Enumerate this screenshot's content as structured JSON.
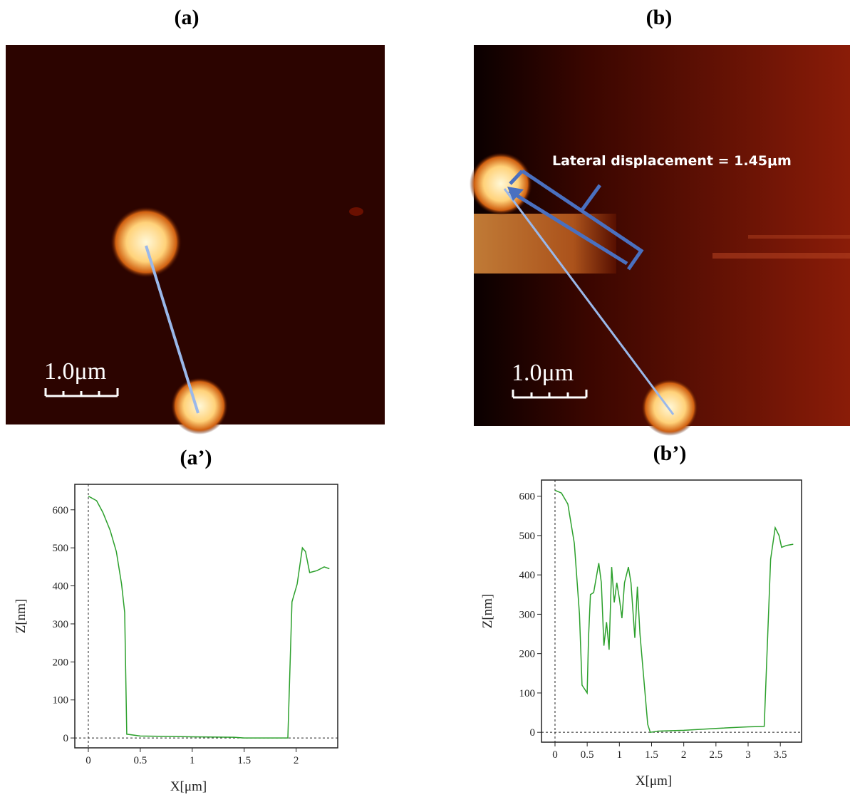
{
  "panels": {
    "a": "(a)",
    "b": "(b)"
  },
  "images": [
    {
      "scale_bar": "1.0μm"
    },
    {
      "scale_bar": "1.0μm",
      "annotation": "Lateral displacement  = 1.45μm"
    }
  ],
  "chart_data": [
    {
      "type": "line",
      "title": "(a’)",
      "x_label": "X[μm]",
      "y_label": "Z[nm]",
      "color": "#2ca02c",
      "x": [
        0,
        0.08,
        0.14,
        0.21,
        0.27,
        0.32,
        0.35,
        0.37,
        0.5,
        1.0,
        1.4,
        1.5,
        1.92,
        1.96,
        2.01,
        2.06,
        2.09,
        2.13,
        2.2,
        2.27,
        2.32
      ],
      "values": [
        636,
        624,
        593,
        546,
        490,
        405,
        330,
        10,
        5,
        3,
        2,
        0,
        0,
        358,
        405,
        500,
        490,
        435,
        440,
        450,
        445
      ],
      "xlim": [
        -0.13,
        2.4
      ],
      "ylim": [
        -26,
        667
      ],
      "xticks": [
        0,
        0.5,
        1,
        1.5,
        2
      ],
      "yticks": [
        0,
        100,
        200,
        300,
        400,
        500,
        600
      ]
    },
    {
      "type": "line",
      "title": "(b’)",
      "x_label": "X[μm]",
      "y_label": "Z[nm]",
      "color": "#2ca02c",
      "x": [
        0,
        0.1,
        0.2,
        0.3,
        0.38,
        0.42,
        0.5,
        0.52,
        0.55,
        0.6,
        0.68,
        0.72,
        0.76,
        0.8,
        0.84,
        0.88,
        0.92,
        0.96,
        1.0,
        1.04,
        1.08,
        1.14,
        1.18,
        1.24,
        1.28,
        1.32,
        1.44,
        1.48,
        1.6,
        2.0,
        2.5,
        3.0,
        3.25,
        3.35,
        3.42,
        3.48,
        3.52,
        3.6,
        3.7
      ],
      "values": [
        615,
        608,
        580,
        480,
        300,
        120,
        100,
        240,
        350,
        355,
        430,
        380,
        220,
        280,
        210,
        420,
        330,
        380,
        340,
        290,
        380,
        420,
        380,
        240,
        370,
        250,
        20,
        0,
        3,
        5,
        10,
        14,
        15,
        440,
        520,
        500,
        470,
        475,
        478
      ],
      "xlim": [
        -0.21,
        3.83
      ],
      "ylim": [
        -25,
        641
      ],
      "xticks": [
        0,
        0.5,
        1,
        1.5,
        2,
        2.5,
        3,
        3.5
      ],
      "yticks": [
        0,
        100,
        200,
        300,
        400,
        500,
        600
      ]
    }
  ]
}
